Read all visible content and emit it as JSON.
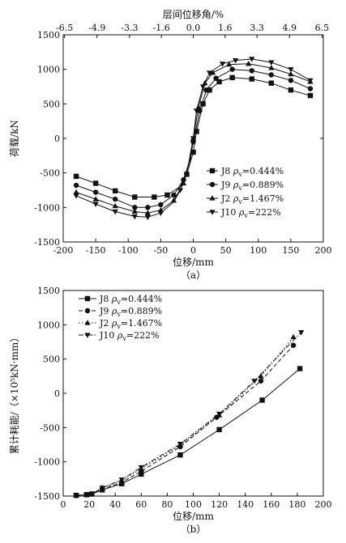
{
  "chart_data": [
    {
      "type": "line",
      "caption": "（a）",
      "xlabel": "位移/mm",
      "ylabel": "荷载/kN",
      "x2label": "层间位移角/%",
      "xlim": [
        -200,
        200
      ],
      "ylim": [
        -1500,
        1500
      ],
      "xticks": [
        -200,
        -150,
        -100,
        -50,
        0,
        50,
        100,
        150,
        200
      ],
      "yticks": [
        -1500,
        -1000,
        -500,
        0,
        500,
        1000,
        1500
      ],
      "x2ticks": [
        {
          "label": "-6.5",
          "at": -198
        },
        {
          "label": "-4.9",
          "at": -148
        },
        {
          "label": "-3.3",
          "at": -98
        },
        {
          "label": "-1.6",
          "at": -49
        },
        {
          "label": "0.0",
          "at": 0
        },
        {
          "label": "1.6",
          "at": 49
        },
        {
          "label": "3.3",
          "at": 98
        },
        {
          "label": "4.9",
          "at": 148
        },
        {
          "label": "6.5",
          "at": 198
        }
      ],
      "grid": false,
      "legend_position": "lower-right",
      "series": [
        {
          "name": "J8",
          "rho_symbol": "ρ",
          "rho_sub": "v",
          "rho_value": "=0.444%",
          "marker": "square",
          "dash": "solid",
          "points": [
            [
              -180,
              -550
            ],
            [
              -150,
              -650
            ],
            [
              -120,
              -760
            ],
            [
              -90,
              -850
            ],
            [
              -60,
              -850
            ],
            [
              -40,
              -820
            ],
            [
              -20,
              -700
            ],
            [
              -10,
              -520
            ],
            [
              0,
              -200
            ],
            [
              5,
              100
            ],
            [
              15,
              500
            ],
            [
              25,
              700
            ],
            [
              40,
              820
            ],
            [
              60,
              880
            ],
            [
              90,
              860
            ],
            [
              120,
              800
            ],
            [
              150,
              700
            ],
            [
              180,
              620
            ]
          ],
          "marked": [
            [
              -180,
              -550
            ],
            [
              -150,
              -650
            ],
            [
              -120,
              -760
            ],
            [
              -90,
              -850
            ],
            [
              -60,
              -850
            ],
            [
              -40,
              -820
            ],
            [
              -10,
              -520
            ],
            [
              0,
              -200
            ],
            [
              5,
              100
            ],
            [
              15,
              500
            ],
            [
              25,
              700
            ],
            [
              40,
              820
            ],
            [
              60,
              880
            ],
            [
              90,
              860
            ],
            [
              120,
              800
            ],
            [
              150,
              700
            ],
            [
              180,
              620
            ]
          ]
        },
        {
          "name": "J9",
          "rho_symbol": "ρ",
          "rho_sub": "v",
          "rho_value": "=0.889%",
          "marker": "circle",
          "dash": "solid",
          "points": [
            [
              -180,
              -680
            ],
            [
              -150,
              -780
            ],
            [
              -120,
              -880
            ],
            [
              -90,
              -1000
            ],
            [
              -70,
              -1000
            ],
            [
              -50,
              -960
            ],
            [
              -30,
              -820
            ],
            [
              -15,
              -600
            ],
            [
              -5,
              -300
            ],
            [
              0,
              -50
            ],
            [
              10,
              400
            ],
            [
              20,
              700
            ],
            [
              35,
              870
            ],
            [
              60,
              1000
            ],
            [
              90,
              980
            ],
            [
              120,
              920
            ],
            [
              150,
              840
            ],
            [
              180,
              720
            ]
          ],
          "marked": [
            [
              -180,
              -680
            ],
            [
              -150,
              -780
            ],
            [
              -120,
              -880
            ],
            [
              -90,
              -1000
            ],
            [
              -70,
              -1000
            ],
            [
              -50,
              -960
            ],
            [
              -30,
              -820
            ],
            [
              -15,
              -600
            ],
            [
              0,
              -50
            ],
            [
              10,
              400
            ],
            [
              20,
              700
            ],
            [
              35,
              870
            ],
            [
              60,
              1000
            ],
            [
              90,
              980
            ],
            [
              120,
              920
            ],
            [
              150,
              840
            ],
            [
              180,
              720
            ]
          ]
        },
        {
          "name": "J2",
          "rho_symbol": "ρ",
          "rho_sub": "v",
          "rho_value": "=1.467%",
          "marker": "triangle-up",
          "dash": "solid",
          "points": [
            [
              -180,
              -780
            ],
            [
              -150,
              -880
            ],
            [
              -120,
              -980
            ],
            [
              -90,
              -1060
            ],
            [
              -70,
              -1080
            ],
            [
              -50,
              -1040
            ],
            [
              -30,
              -900
            ],
            [
              -15,
              -650
            ],
            [
              -5,
              -350
            ],
            [
              0,
              0
            ],
            [
              8,
              450
            ],
            [
              18,
              800
            ],
            [
              30,
              950
            ],
            [
              55,
              1070
            ],
            [
              85,
              1080
            ],
            [
              120,
              1020
            ],
            [
              150,
              930
            ],
            [
              180,
              820
            ]
          ],
          "marked": [
            [
              -180,
              -780
            ],
            [
              -150,
              -880
            ],
            [
              -120,
              -980
            ],
            [
              -90,
              -1060
            ],
            [
              -70,
              -1080
            ],
            [
              -50,
              -1040
            ],
            [
              -30,
              -900
            ],
            [
              -15,
              -650
            ],
            [
              0,
              0
            ],
            [
              8,
              450
            ],
            [
              18,
              800
            ],
            [
              30,
              950
            ],
            [
              55,
              1070
            ],
            [
              85,
              1080
            ],
            [
              120,
              1020
            ],
            [
              150,
              930
            ],
            [
              180,
              820
            ]
          ]
        },
        {
          "name": "J10",
          "rho_symbol": "ρ",
          "rho_sub": "v",
          "rho_value": "=222%",
          "marker": "triangle-down",
          "dash": "solid",
          "points": [
            [
              -180,
              -830
            ],
            [
              -150,
              -950
            ],
            [
              -120,
              -1060
            ],
            [
              -90,
              -1130
            ],
            [
              -70,
              -1140
            ],
            [
              -50,
              -1080
            ],
            [
              -30,
              -920
            ],
            [
              -20,
              -750
            ],
            [
              -8,
              -400
            ],
            [
              0,
              0
            ],
            [
              5,
              400
            ],
            [
              15,
              750
            ],
            [
              25,
              950
            ],
            [
              45,
              1080
            ],
            [
              65,
              1130
            ],
            [
              90,
              1150
            ],
            [
              120,
              1100
            ],
            [
              150,
              1000
            ],
            [
              180,
              840
            ]
          ],
          "marked": [
            [
              -180,
              -830
            ],
            [
              -150,
              -950
            ],
            [
              -120,
              -1060
            ],
            [
              -90,
              -1130
            ],
            [
              -70,
              -1140
            ],
            [
              -50,
              -1080
            ],
            [
              -20,
              -750
            ],
            [
              0,
              0
            ],
            [
              5,
              400
            ],
            [
              15,
              750
            ],
            [
              25,
              950
            ],
            [
              45,
              1080
            ],
            [
              65,
              1130
            ],
            [
              90,
              1150
            ],
            [
              120,
              1100
            ],
            [
              150,
              1000
            ],
            [
              180,
              840
            ]
          ]
        }
      ]
    },
    {
      "type": "line",
      "caption": "（b）",
      "xlabel": "位移/mm",
      "ylabel": "累计耗能/（×10⁵kN·mm）",
      "xlim": [
        0,
        200
      ],
      "ylim": [
        -1500,
        1500
      ],
      "xticks": [
        0,
        20,
        40,
        60,
        80,
        100,
        120,
        140,
        160,
        180,
        200
      ],
      "yticks": [
        -1500,
        -1000,
        -500,
        0,
        500,
        1000,
        1500
      ],
      "grid": false,
      "legend_position": "top-left",
      "series": [
        {
          "name": "J8",
          "rho_symbol": "ρ",
          "rho_sub": "v",
          "rho_value": "=0.444%",
          "marker": "square",
          "dash": "solid",
          "points": [
            [
              10,
              -1490
            ],
            [
              18,
              -1480
            ],
            [
              22,
              -1470
            ],
            [
              30,
              -1410
            ],
            [
              45,
              -1320
            ],
            [
              60,
              -1180
            ],
            [
              90,
              -900
            ],
            [
              120,
              -530
            ],
            [
              153,
              -100
            ],
            [
              182,
              360
            ]
          ],
          "marked": [
            [
              10,
              -1490
            ],
            [
              18,
              -1480
            ],
            [
              22,
              -1470
            ],
            [
              30,
              -1410
            ],
            [
              45,
              -1320
            ],
            [
              60,
              -1180
            ],
            [
              90,
              -900
            ],
            [
              120,
              -530
            ],
            [
              153,
              -100
            ],
            [
              182,
              360
            ]
          ]
        },
        {
          "name": "J9",
          "rho_symbol": "ρ",
          "rho_sub": "v",
          "rho_value": "=0.889%",
          "marker": "circle",
          "dash": "dash",
          "points": [
            [
              10,
              -1490
            ],
            [
              18,
              -1480
            ],
            [
              22,
              -1470
            ],
            [
              30,
              -1400
            ],
            [
              45,
              -1300
            ],
            [
              60,
              -1140
            ],
            [
              90,
              -780
            ],
            [
              118,
              -350
            ],
            [
              152,
              180
            ],
            [
              177,
              700
            ]
          ],
          "marked": [
            [
              10,
              -1490
            ],
            [
              18,
              -1480
            ],
            [
              22,
              -1470
            ],
            [
              30,
              -1400
            ],
            [
              45,
              -1300
            ],
            [
              60,
              -1140
            ],
            [
              90,
              -780
            ],
            [
              118,
              -350
            ],
            [
              152,
              180
            ],
            [
              177,
              700
            ]
          ]
        },
        {
          "name": "J2",
          "rho_symbol": "ρ",
          "rho_sub": "v",
          "rho_value": "=1.467%",
          "marker": "triangle-up",
          "dash": "dot",
          "points": [
            [
              10,
              -1490
            ],
            [
              18,
              -1480
            ],
            [
              22,
              -1470
            ],
            [
              30,
              -1380
            ],
            [
              45,
              -1280
            ],
            [
              60,
              -1100
            ],
            [
              90,
              -760
            ],
            [
              120,
              -320
            ],
            [
              152,
              250
            ],
            [
              177,
              820
            ]
          ],
          "marked": [
            [
              10,
              -1490
            ],
            [
              18,
              -1480
            ],
            [
              22,
              -1470
            ],
            [
              30,
              -1380
            ],
            [
              45,
              -1280
            ],
            [
              60,
              -1100
            ],
            [
              90,
              -760
            ],
            [
              120,
              -320
            ],
            [
              152,
              250
            ],
            [
              177,
              820
            ]
          ]
        },
        {
          "name": "J10",
          "rho_symbol": "ρ",
          "rho_sub": "v",
          "rho_value": "=222%",
          "marker": "triangle-down",
          "dash": "dashdot",
          "points": [
            [
              10,
              -1490
            ],
            [
              18,
              -1480
            ],
            [
              22,
              -1470
            ],
            [
              30,
              -1380
            ],
            [
              45,
              -1260
            ],
            [
              60,
              -1080
            ],
            [
              90,
              -740
            ],
            [
              120,
              -300
            ],
            [
              147,
              180
            ],
            [
              183,
              890
            ]
          ],
          "marked": [
            [
              10,
              -1490
            ],
            [
              18,
              -1480
            ],
            [
              22,
              -1470
            ],
            [
              30,
              -1380
            ],
            [
              45,
              -1260
            ],
            [
              60,
              -1080
            ],
            [
              90,
              -740
            ],
            [
              120,
              -300
            ],
            [
              147,
              180
            ],
            [
              183,
              890
            ]
          ]
        }
      ]
    }
  ]
}
